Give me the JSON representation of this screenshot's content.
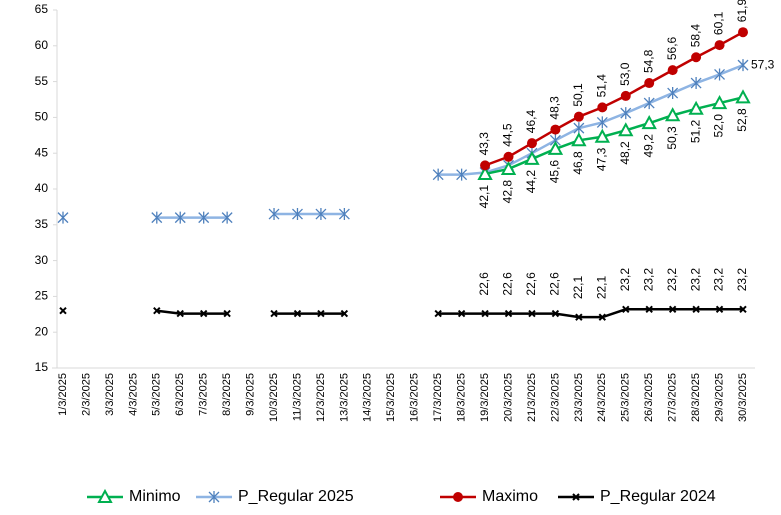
{
  "chart_data": {
    "type": "line",
    "categories": [
      "1/3/2025",
      "2/3/2025",
      "3/3/2025",
      "4/3/2025",
      "5/3/2025",
      "6/3/2025",
      "7/3/2025",
      "8/3/2025",
      "9/3/2025",
      "10/3/2025",
      "11/3/2025",
      "12/3/2025",
      "13/3/2025",
      "14/3/2025",
      "15/3/2025",
      "16/3/2025",
      "17/3/2025",
      "18/3/2025",
      "19/3/2025",
      "20/3/2025",
      "21/3/2025",
      "22/3/2025",
      "23/3/2025",
      "24/3/2025",
      "25/3/2025",
      "26/3/2025",
      "27/3/2025",
      "28/3/2025",
      "29/3/2025",
      "30/3/2025"
    ],
    "series": [
      {
        "name": "Minimo",
        "color": "#00b050",
        "marker": "triangle",
        "values": [
          null,
          null,
          null,
          null,
          null,
          null,
          null,
          null,
          null,
          null,
          null,
          null,
          null,
          null,
          null,
          null,
          null,
          null,
          42.1,
          42.8,
          44.2,
          45.6,
          46.8,
          47.3,
          48.2,
          49.2,
          50.3,
          51.2,
          52.0,
          52.8
        ],
        "value_labels": [
          null,
          null,
          null,
          null,
          null,
          null,
          null,
          null,
          null,
          null,
          null,
          null,
          null,
          null,
          null,
          null,
          null,
          null,
          "42,1",
          "42,8",
          "44,2",
          "45,6",
          "46,8",
          "47,3",
          "48,2",
          "49,2",
          "50,3",
          "51,2",
          "52,0",
          "52,8"
        ]
      },
      {
        "name": "P_Regular 2025",
        "color": "#8eb4e3",
        "marker": "asterisk",
        "values": [
          36,
          null,
          null,
          null,
          36,
          36,
          36,
          36,
          null,
          36.5,
          36.5,
          36.5,
          36.5,
          null,
          null,
          null,
          42,
          42,
          42.3,
          43.3,
          45,
          46.8,
          48.5,
          49.3,
          50.6,
          52,
          53.4,
          54.8,
          56,
          57.3
        ],
        "value_labels": [
          null,
          null,
          null,
          null,
          null,
          null,
          null,
          null,
          null,
          null,
          null,
          null,
          null,
          null,
          null,
          null,
          null,
          null,
          null,
          null,
          null,
          null,
          null,
          null,
          null,
          null,
          null,
          null,
          null,
          "57,3"
        ]
      },
      {
        "name": "Maximo",
        "color": "#c00000",
        "marker": "circle",
        "values": [
          null,
          null,
          null,
          null,
          null,
          null,
          null,
          null,
          null,
          null,
          null,
          null,
          null,
          null,
          null,
          null,
          null,
          null,
          43.3,
          44.5,
          46.4,
          48.3,
          50.1,
          51.4,
          53.0,
          54.8,
          56.6,
          58.4,
          60.1,
          61.9
        ],
        "value_labels": [
          null,
          null,
          null,
          null,
          null,
          null,
          null,
          null,
          null,
          null,
          null,
          null,
          null,
          null,
          null,
          null,
          null,
          null,
          "43,3",
          "44,5",
          "46,4",
          "48,3",
          "50,1",
          "51,4",
          "53,0",
          "54,8",
          "56,6",
          "58,4",
          "60,1",
          "61,9"
        ]
      },
      {
        "name": "P_Regular 2024",
        "color": "#000000",
        "marker": "cross",
        "values": [
          23,
          null,
          null,
          null,
          23,
          22.6,
          22.6,
          22.6,
          null,
          22.6,
          22.6,
          22.6,
          22.6,
          null,
          null,
          null,
          22.6,
          22.6,
          22.6,
          22.6,
          22.6,
          22.6,
          22.1,
          22.1,
          23.2,
          23.2,
          23.2,
          23.2,
          23.2,
          23.2
        ],
        "value_labels": [
          null,
          null,
          null,
          null,
          null,
          null,
          null,
          null,
          null,
          null,
          null,
          null,
          null,
          null,
          null,
          null,
          null,
          null,
          "22,6",
          "22,6",
          "22,6",
          "22,6",
          "22,1",
          "22,1",
          "23,2",
          "23,2",
          "23,2",
          "23,2",
          "23,2",
          "23,2"
        ]
      }
    ],
    "ylim": [
      15,
      65
    ],
    "yticks": [
      15,
      20,
      25,
      30,
      35,
      40,
      45,
      50,
      55,
      60,
      65
    ],
    "grid": false,
    "legend": "bottom"
  }
}
